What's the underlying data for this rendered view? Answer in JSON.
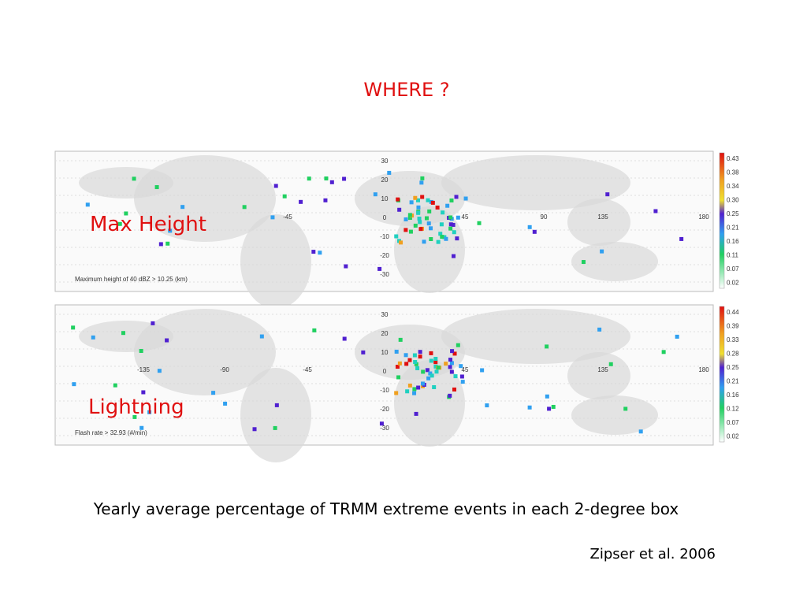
{
  "header": {
    "title": "WHERE ?"
  },
  "panels": [
    {
      "label": "Max Height",
      "map_caption": "Maximum height of 40 dBZ > 10.25 (km)",
      "lat_labels": [
        "30",
        "20",
        "10",
        "0",
        "-10",
        "-20",
        "-30"
      ],
      "lon_labels": [
        "-45",
        "45",
        "90",
        "135",
        "180"
      ],
      "colorbar_labels": [
        "0.43",
        "0.38",
        "0.34",
        "0.30",
        "0.25",
        "0.21",
        "0.16",
        "0.11",
        "0.07",
        "0.02"
      ]
    },
    {
      "label": "Lightning",
      "map_caption": "Flash rate > 32.93 (#/min)",
      "lat_labels": [
        "30",
        "20",
        "10",
        "0",
        "-10",
        "-20",
        "-30"
      ],
      "lon_labels": [
        "-135",
        "-90",
        "-45",
        "45",
        "135",
        "180"
      ],
      "colorbar_labels": [
        "0.44",
        "0.39",
        "0.33",
        "0.28",
        "0.25",
        "0.21",
        "0.16",
        "0.12",
        "0.07",
        "0.02"
      ]
    }
  ],
  "caption": "Yearly average percentage of TRMM extreme events in each 2-degree box",
  "citation": "Zipser et al. 2006"
}
